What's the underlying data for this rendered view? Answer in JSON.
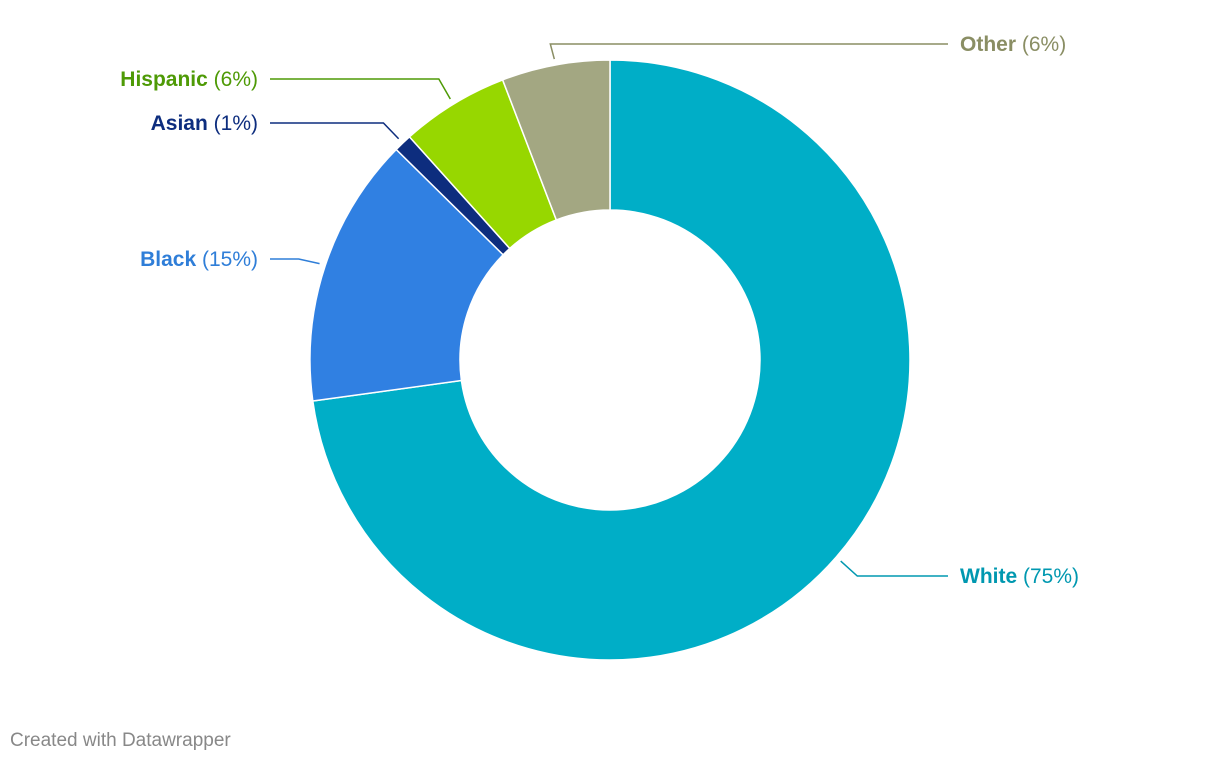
{
  "chart_data": {
    "type": "pie",
    "donut": true,
    "title": "",
    "slices": [
      {
        "label": "White",
        "value": 75,
        "display": "(75%)",
        "color": "#00aec7",
        "label_color": "#0098b0"
      },
      {
        "label": "Black",
        "value": 15,
        "display": "(15%)",
        "color": "#3080e2",
        "label_color": "#2f7ed8"
      },
      {
        "label": "Asian",
        "value": 1,
        "display": "(1%)",
        "color": "#0d2d7e",
        "label_color": "#0d2d7e"
      },
      {
        "label": "Hispanic",
        "value": 6,
        "display": "(6%)",
        "color": "#97d700",
        "label_color": "#4e9a06"
      },
      {
        "label": "Other",
        "value": 6,
        "display": "(6%)",
        "color": "#a3a782",
        "label_color": "#8a8e64"
      }
    ]
  },
  "footer": {
    "credit": "Created with Datawrapper"
  }
}
